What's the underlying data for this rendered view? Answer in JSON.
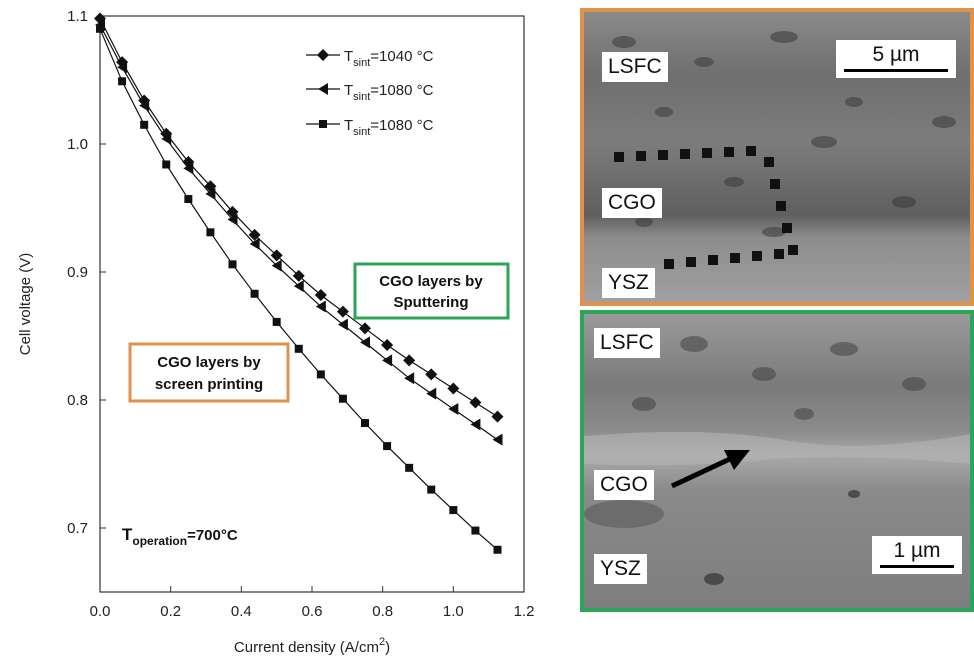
{
  "chart_data": {
    "type": "line",
    "xlabel": "Current density (A/cm",
    "xlabel_sup": "2",
    "xlabel_end": ")",
    "ylabel": "Cell voltage (V)",
    "xlim": [
      0.0,
      1.2
    ],
    "ylim": [
      0.65,
      1.1
    ],
    "xticks": [
      "0.0",
      "0.2",
      "0.4",
      "0.6",
      "0.8",
      "1.0",
      "1.2"
    ],
    "yticks": [
      "0.7",
      "0.8",
      "0.9",
      "1.0",
      "1.1"
    ],
    "grid": false,
    "legend_placement": "top-right",
    "series": [
      {
        "name": "T_sint=1040 °C",
        "label_main": "T",
        "label_sub": "sint",
        "label_rest": "=1040 °C",
        "marker": "diamond",
        "x": [
          0.0,
          0.0625,
          0.125,
          0.1875,
          0.25,
          0.3125,
          0.375,
          0.4375,
          0.5,
          0.5625,
          0.625,
          0.6875,
          0.75,
          0.8125,
          0.875,
          0.9375,
          1.0,
          1.0625,
          1.125
        ],
        "y": [
          1.098,
          1.064,
          1.034,
          1.008,
          0.986,
          0.967,
          0.947,
          0.929,
          0.913,
          0.897,
          0.882,
          0.869,
          0.856,
          0.843,
          0.831,
          0.82,
          0.809,
          0.798,
          0.787
        ]
      },
      {
        "name": "T_sint=1080 °C",
        "label_main": "T",
        "label_sub": "sint",
        "label_rest": "=1080 °C",
        "marker": "triangle-left",
        "x": [
          0.0,
          0.0625,
          0.125,
          0.1875,
          0.25,
          0.3125,
          0.375,
          0.4375,
          0.5,
          0.5625,
          0.625,
          0.6875,
          0.75,
          0.8125,
          0.875,
          0.9375,
          1.0,
          1.0625,
          1.125
        ],
        "y": [
          1.093,
          1.06,
          1.03,
          1.004,
          0.981,
          0.961,
          0.941,
          0.922,
          0.905,
          0.889,
          0.873,
          0.859,
          0.845,
          0.831,
          0.817,
          0.805,
          0.793,
          0.781,
          0.769
        ]
      },
      {
        "name": "T_sint=1080 °C",
        "label_main": "T",
        "label_sub": "sint",
        "label_rest": "=1080 °C",
        "marker": "square",
        "x": [
          0.0,
          0.0625,
          0.125,
          0.1875,
          0.25,
          0.3125,
          0.375,
          0.4375,
          0.5,
          0.5625,
          0.625,
          0.6875,
          0.75,
          0.8125,
          0.875,
          0.9375,
          1.0,
          1.0625,
          1.125
        ],
        "y": [
          1.09,
          1.049,
          1.015,
          0.984,
          0.957,
          0.931,
          0.906,
          0.883,
          0.861,
          0.84,
          0.82,
          0.801,
          0.782,
          0.764,
          0.747,
          0.73,
          0.714,
          0.698,
          0.683
        ]
      }
    ],
    "annotations": [
      {
        "id": "sputtering",
        "lines": [
          "CGO layers by",
          "Sputtering"
        ],
        "color": "#2ba55a"
      },
      {
        "id": "screen",
        "lines": [
          "CGO layers by",
          "screen printing"
        ],
        "color": "#e0924a"
      },
      {
        "id": "operation",
        "main": "T",
        "sub": "operation",
        "rest": "=700°C"
      }
    ]
  },
  "sem_images": {
    "top": {
      "border_color": "#e0924a",
      "labels": [
        "LSFC",
        "CGO",
        "YSZ"
      ],
      "scale_bar": "5 µm"
    },
    "bottom": {
      "border_color": "#2ba55a",
      "labels": [
        "LSFC",
        "CGO",
        "YSZ"
      ],
      "scale_bar": "1 µm"
    }
  }
}
